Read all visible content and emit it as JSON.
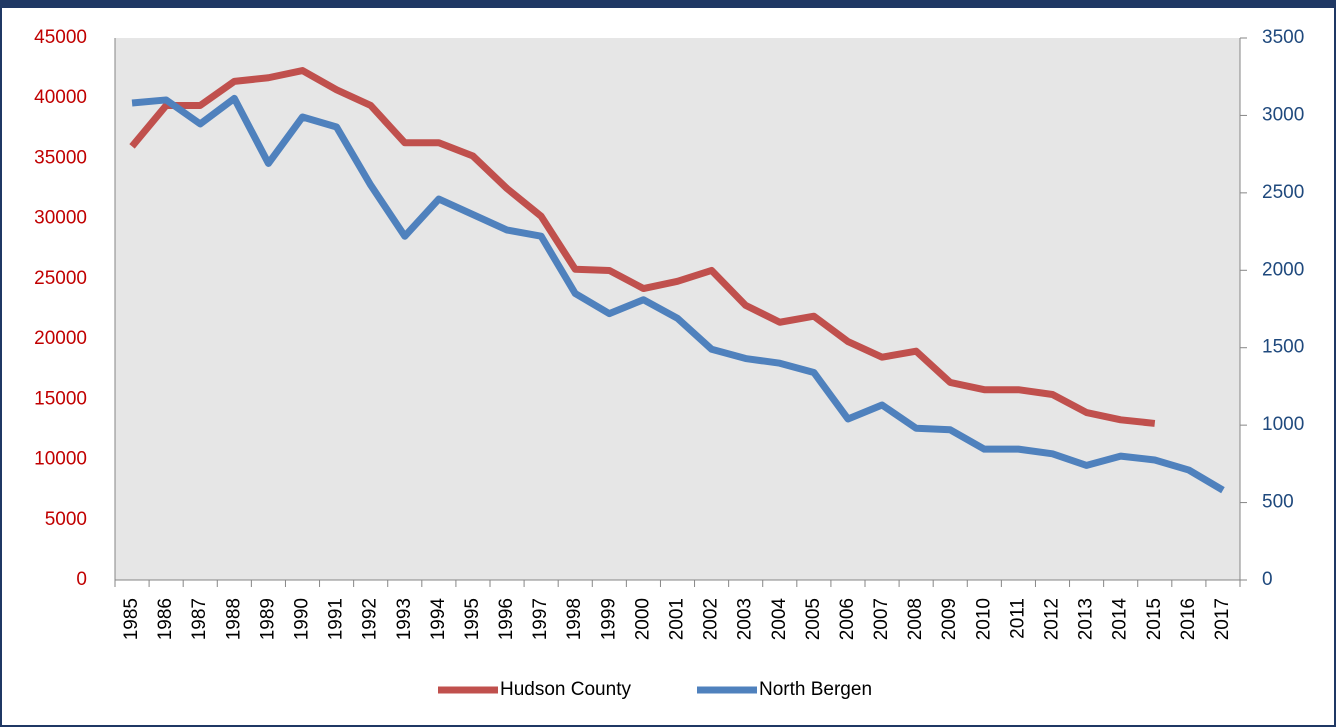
{
  "chart_data": {
    "type": "line",
    "categories": [
      "1985",
      "1986",
      "1987",
      "1988",
      "1989",
      "1990",
      "1991",
      "1992",
      "1993",
      "1994",
      "1995",
      "1996",
      "1997",
      "1998",
      "1999",
      "2000",
      "2001",
      "2002",
      "2003",
      "2004",
      "2005",
      "2006",
      "2007",
      "2008",
      "2009",
      "2010",
      "2011",
      "2012",
      "2013",
      "2014",
      "2015",
      "2016",
      "2017"
    ],
    "series": [
      {
        "name": "Hudson County",
        "color": "#c0504d",
        "axis": "y",
        "values": [
          36000,
          39400,
          39400,
          41400,
          41700,
          42300,
          40700,
          39400,
          36300,
          36300,
          35200,
          32500,
          30200,
          25800,
          25700,
          24200,
          24800,
          25700,
          22800,
          21400,
          21900,
          19800,
          18500,
          19000,
          16400,
          15800,
          15800,
          15400,
          13900,
          13300,
          13000,
          null,
          null
        ]
      },
      {
        "name": "North Bergen",
        "color": "#4f81bd",
        "axis": "y2",
        "values": [
          3080,
          3100,
          2945,
          3110,
          2690,
          2990,
          2925,
          2550,
          2220,
          2460,
          2360,
          2260,
          2220,
          1850,
          1720,
          1810,
          1690,
          1490,
          1430,
          1400,
          1340,
          1040,
          1130,
          980,
          970,
          845,
          845,
          815,
          740,
          800,
          775,
          710,
          580
        ]
      }
    ],
    "ylim": [
      0,
      45000
    ],
    "yticks": [
      0,
      5000,
      10000,
      15000,
      20000,
      25000,
      30000,
      35000,
      40000,
      45000
    ],
    "ytick_color": "#c00000",
    "y2lim": [
      0,
      3500
    ],
    "y2ticks": [
      0,
      500,
      1000,
      1500,
      2000,
      2500,
      3000,
      3500
    ],
    "y2tick_color": "#1f497d",
    "plot_background": "#e6e6e6",
    "legend": "bottom"
  }
}
